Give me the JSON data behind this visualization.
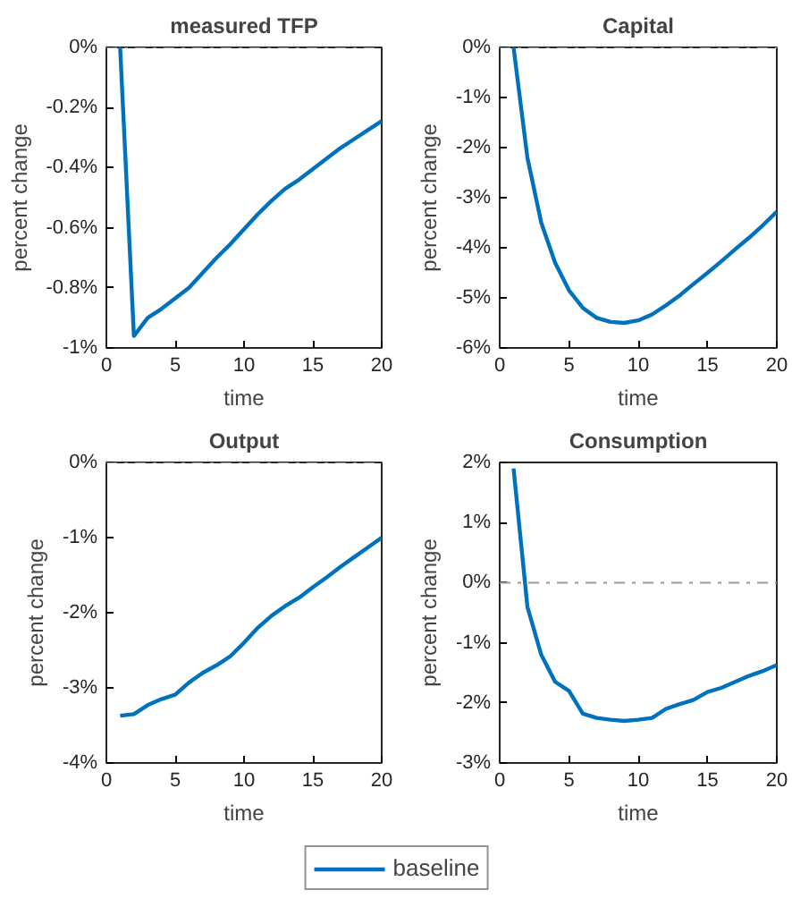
{
  "chart_data": [
    {
      "type": "line",
      "title": "measured TFP",
      "xlabel": "time",
      "ylabel": "percent change",
      "x": [
        1,
        2,
        3,
        4,
        5,
        6,
        7,
        8,
        9,
        10,
        11,
        12,
        13,
        14,
        15,
        16,
        17,
        18,
        19,
        20
      ],
      "series": [
        {
          "color": "#0072bd",
          "values": [
            0,
            -0.96,
            -0.9,
            -0.87,
            -0.835,
            -0.8,
            -0.75,
            -0.7,
            -0.655,
            -0.605,
            -0.555,
            -0.51,
            -0.47,
            -0.44,
            -0.405,
            -0.37,
            -0.335,
            -0.305,
            -0.275,
            -0.245
          ]
        }
      ],
      "xlim": [
        0,
        20
      ],
      "xticks": [
        0,
        5,
        10,
        15,
        20
      ],
      "ylim": [
        -1,
        0
      ],
      "yticks": [
        {
          "value": -1,
          "label": "-1%"
        },
        {
          "value": -0.8,
          "label": "-0.8%"
        },
        {
          "value": -0.6,
          "label": "-0.6%"
        },
        {
          "value": -0.4,
          "label": "-0.4%"
        },
        {
          "value": -0.2,
          "label": "-0.2%"
        },
        {
          "value": 0,
          "label": "0%"
        }
      ],
      "ref_lines": [
        {
          "axis": "y",
          "value": 0,
          "color": "#999999",
          "line_style": "dashdot"
        }
      ],
      "grid": false,
      "line_style": "solid"
    },
    {
      "type": "line",
      "title": "Capital",
      "xlabel": "time",
      "ylabel": "percent change",
      "x": [
        1,
        2,
        3,
        4,
        5,
        6,
        7,
        8,
        9,
        10,
        11,
        12,
        13,
        14,
        15,
        16,
        17,
        18,
        19,
        20
      ],
      "series": [
        {
          "color": "#0072bd",
          "values": [
            0,
            -2.2,
            -3.5,
            -4.3,
            -4.85,
            -5.2,
            -5.4,
            -5.48,
            -5.5,
            -5.45,
            -5.33,
            -5.15,
            -4.95,
            -4.72,
            -4.5,
            -4.27,
            -4.03,
            -3.8,
            -3.55,
            -3.28
          ]
        }
      ],
      "xlim": [
        0,
        20
      ],
      "xticks": [
        0,
        5,
        10,
        15,
        20
      ],
      "ylim": [
        -6,
        0
      ],
      "yticks": [
        {
          "value": -6,
          "label": "-6%"
        },
        {
          "value": -5,
          "label": "-5%"
        },
        {
          "value": -4,
          "label": "-4%"
        },
        {
          "value": -3,
          "label": "-3%"
        },
        {
          "value": -2,
          "label": "-2%"
        },
        {
          "value": -1,
          "label": "-1%"
        },
        {
          "value": 0,
          "label": "0%"
        }
      ],
      "ref_lines": [
        {
          "axis": "y",
          "value": 0,
          "color": "#999999",
          "line_style": "dashdot"
        }
      ],
      "grid": false,
      "line_style": "solid"
    },
    {
      "type": "line",
      "title": "Output",
      "xlabel": "time",
      "ylabel": "percent change",
      "x": [
        1,
        2,
        3,
        4,
        5,
        6,
        7,
        8,
        9,
        10,
        11,
        12,
        13,
        14,
        15,
        16,
        17,
        18,
        19,
        20
      ],
      "series": [
        {
          "color": "#0072bd",
          "values": [
            -3.37,
            -3.35,
            -3.23,
            -3.15,
            -3.09,
            -2.93,
            -2.8,
            -2.7,
            -2.58,
            -2.4,
            -2.2,
            -2.04,
            -1.91,
            -1.8,
            -1.66,
            -1.53,
            -1.39,
            -1.26,
            -1.13,
            -1.0
          ]
        }
      ],
      "xlim": [
        0,
        20
      ],
      "xticks": [
        0,
        5,
        10,
        15,
        20
      ],
      "ylim": [
        -4,
        0
      ],
      "yticks": [
        {
          "value": -4,
          "label": "-4%"
        },
        {
          "value": -3,
          "label": "-3%"
        },
        {
          "value": -2,
          "label": "-2%"
        },
        {
          "value": -1,
          "label": "-1%"
        },
        {
          "value": 0,
          "label": "0%"
        }
      ],
      "ref_lines": [
        {
          "axis": "y",
          "value": 0,
          "color": "#999999",
          "line_style": "dashdot"
        }
      ],
      "grid": false,
      "line_style": "solid"
    },
    {
      "type": "line",
      "title": "Consumption",
      "xlabel": "time",
      "ylabel": "percent change",
      "x": [
        1,
        2,
        3,
        4,
        5,
        6,
        7,
        8,
        9,
        10,
        11,
        12,
        13,
        14,
        15,
        16,
        17,
        18,
        19,
        20
      ],
      "series": [
        {
          "name": "baseline",
          "color": "#0072bd",
          "values": [
            1.9,
            -0.4,
            -1.2,
            -1.65,
            -1.8,
            -2.18,
            -2.25,
            -2.28,
            -2.3,
            -2.28,
            -2.25,
            -2.1,
            -2.02,
            -1.95,
            -1.82,
            -1.75,
            -1.65,
            -1.55,
            -1.47,
            -1.37
          ]
        }
      ],
      "xlim": [
        0,
        20
      ],
      "xticks": [
        0,
        5,
        10,
        15,
        20
      ],
      "ylim": [
        -3,
        2
      ],
      "yticks": [
        {
          "value": -3,
          "label": "-3%"
        },
        {
          "value": -2,
          "label": "-2%"
        },
        {
          "value": -1,
          "label": "-1%"
        },
        {
          "value": 0,
          "label": "0%"
        },
        {
          "value": 1,
          "label": "1%"
        },
        {
          "value": 2,
          "label": "2%"
        }
      ],
      "ref_lines": [
        {
          "axis": "y",
          "value": 0,
          "color": "#999999",
          "line_style": "dashdot"
        }
      ],
      "grid": false,
      "line_style": "solid",
      "legend": "bottom"
    }
  ]
}
